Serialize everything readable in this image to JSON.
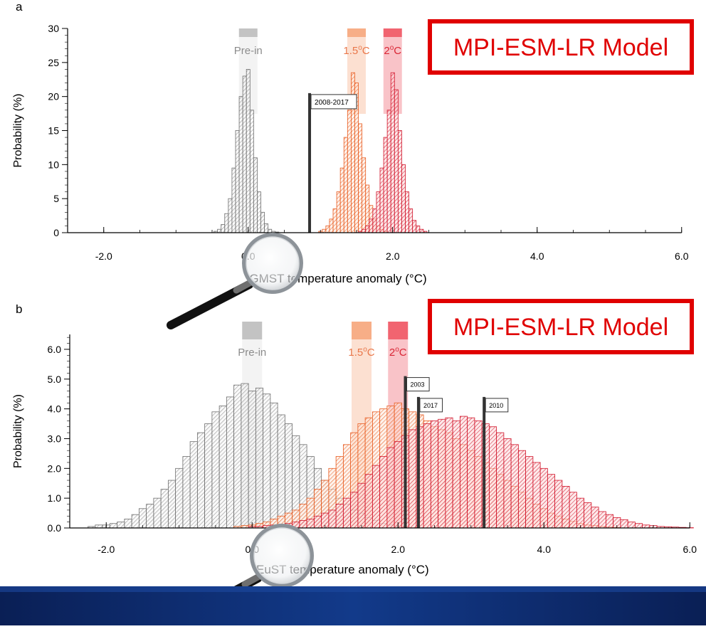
{
  "slide": {
    "model_label": "MPI-ESM-LR Model",
    "footer_color": "#0b2a6b",
    "accent_red": "#e00000"
  },
  "chart_data": [
    {
      "panel_letter": "a",
      "type": "bar",
      "xlabel": "GMST temperature anomaly (°C)",
      "ylabel": "Probability (%)",
      "xlim": [
        -2.5,
        6.0
      ],
      "ylim": [
        0,
        30
      ],
      "xticks": [
        -2.0,
        0.0,
        2.0,
        4.0,
        6.0
      ],
      "xtick_labels": [
        "-2.0",
        "0.0",
        "2.0",
        "4.0",
        "6.0"
      ],
      "yticks": [
        0,
        5,
        10,
        15,
        20,
        25,
        30
      ],
      "ytick_labels": [
        "0",
        "5",
        "10",
        "15",
        "20",
        "25",
        "30"
      ],
      "bin_width": 0.05,
      "legend": [
        {
          "label": "Pre-in",
          "base": "",
          "sup": "",
          "center": 0.0,
          "color": "#bdbdbd",
          "text_color": "#8c8c8c"
        },
        {
          "label": "1.5°C",
          "base": "1.5",
          "sup": "o",
          "after": "C",
          "center": 1.5,
          "color": "#f6a57a",
          "text_color": "#e9774a"
        },
        {
          "label": "2°C",
          "base": "2",
          "sup": "o",
          "after": "C",
          "center": 2.0,
          "color": "#ef5360",
          "text_color": "#d92635"
        }
      ],
      "series": [
        {
          "name": "Pre-in",
          "stroke": "#6e6e6e",
          "fill": "#f3f3f3",
          "x": [
            -0.45,
            -0.4,
            -0.35,
            -0.3,
            -0.25,
            -0.2,
            -0.15,
            -0.1,
            -0.05,
            0.0,
            0.05,
            0.1,
            0.15,
            0.2,
            0.25,
            0.3,
            0.35,
            0.4
          ],
          "values": [
            0.2,
            0.5,
            1.2,
            2.8,
            5.0,
            9.5,
            15.0,
            20.0,
            23.0,
            24.0,
            18.0,
            11.0,
            6.0,
            3.0,
            1.3,
            0.5,
            0.2,
            0.1
          ]
        },
        {
          "name": "1.5°C",
          "stroke": "#e85a1e",
          "fill": "#fde6d8",
          "x": [
            1.0,
            1.05,
            1.1,
            1.15,
            1.2,
            1.25,
            1.3,
            1.35,
            1.4,
            1.45,
            1.5,
            1.55,
            1.6,
            1.65,
            1.7,
            1.75,
            1.8,
            1.85,
            1.9
          ],
          "values": [
            0.2,
            0.5,
            1.0,
            2.0,
            3.5,
            6.0,
            9.5,
            14.0,
            18.0,
            23.5,
            22.0,
            16.0,
            11.0,
            7.0,
            4.0,
            2.0,
            1.0,
            0.5,
            0.2
          ]
        },
        {
          "name": "2°C",
          "stroke": "#d1142a",
          "fill": "#fbd3d6",
          "x": [
            1.55,
            1.6,
            1.65,
            1.7,
            1.75,
            1.8,
            1.85,
            1.9,
            1.95,
            2.0,
            2.05,
            2.1,
            2.15,
            2.2,
            2.25,
            2.3,
            2.35,
            2.4,
            2.45
          ],
          "values": [
            0.2,
            0.5,
            1.0,
            2.0,
            3.5,
            6.0,
            9.5,
            14.0,
            18.0,
            23.5,
            21.0,
            15.0,
            10.0,
            6.0,
            3.5,
            1.8,
            1.0,
            0.5,
            0.2
          ]
        }
      ],
      "markers": [
        {
          "label": "2008-2017",
          "x": 0.85,
          "top": 20.5
        }
      ]
    },
    {
      "panel_letter": "b",
      "type": "bar",
      "xlabel": "EuST temperature anomaly (°C)",
      "ylabel": "Probability (%)",
      "xlim": [
        -2.5,
        6.0
      ],
      "ylim": [
        0,
        6.5
      ],
      "xticks": [
        -2.0,
        0.0,
        2.0,
        4.0,
        6.0
      ],
      "xtick_labels": [
        "-2.0",
        "0.0",
        "2.0",
        "4.0",
        "6.0"
      ],
      "yticks": [
        0,
        1,
        2,
        3,
        4,
        5,
        6
      ],
      "ytick_labels": [
        "0.0",
        "1.0",
        "2.0",
        "3.0",
        "4.0",
        "5.0",
        "6.0"
      ],
      "bin_width": 0.1,
      "legend": [
        {
          "label": "Pre-in",
          "base": "",
          "sup": "",
          "center": 0.0,
          "color": "#bdbdbd",
          "text_color": "#8c8c8c"
        },
        {
          "label": "1.5°C",
          "base": "1.5",
          "sup": "o",
          "after": "C",
          "center": 1.5,
          "color": "#f6a57a",
          "text_color": "#e9774a"
        },
        {
          "label": "2°C",
          "base": "2",
          "sup": "o",
          "after": "C",
          "center": 2.0,
          "color": "#ef5360",
          "text_color": "#d92635"
        }
      ],
      "series": [
        {
          "name": "Pre-in",
          "stroke": "#6e6e6e",
          "fill": "#f3f3f3",
          "x": [
            -2.2,
            -2.1,
            -2.0,
            -1.9,
            -1.8,
            -1.7,
            -1.6,
            -1.5,
            -1.4,
            -1.3,
            -1.2,
            -1.1,
            -1.0,
            -0.9,
            -0.8,
            -0.7,
            -0.6,
            -0.5,
            -0.4,
            -0.3,
            -0.2,
            -0.1,
            0.0,
            0.1,
            0.2,
            0.3,
            0.4,
            0.5,
            0.6,
            0.7,
            0.8,
            0.9,
            1.0,
            1.1,
            1.2,
            1.3,
            1.4,
            1.5,
            1.6,
            1.7,
            1.8,
            1.9,
            2.0
          ],
          "values": [
            0.05,
            0.1,
            0.1,
            0.15,
            0.2,
            0.3,
            0.45,
            0.65,
            0.8,
            1.0,
            1.3,
            1.6,
            2.0,
            2.4,
            2.9,
            3.2,
            3.5,
            3.9,
            4.1,
            4.4,
            4.8,
            4.85,
            4.6,
            4.7,
            4.5,
            4.2,
            3.8,
            3.5,
            3.1,
            2.8,
            2.4,
            2.0,
            1.6,
            1.3,
            1.0,
            0.8,
            0.6,
            0.5,
            0.35,
            0.25,
            0.15,
            0.1,
            0.05
          ]
        },
        {
          "name": "1.5°C",
          "stroke": "#e85a1e",
          "fill": "#fde6d8",
          "x": [
            -0.2,
            -0.1,
            0.0,
            0.1,
            0.2,
            0.3,
            0.4,
            0.5,
            0.6,
            0.7,
            0.8,
            0.9,
            1.0,
            1.1,
            1.2,
            1.3,
            1.4,
            1.5,
            1.6,
            1.7,
            1.8,
            1.9,
            2.0,
            2.1,
            2.2,
            2.3,
            2.4,
            2.5,
            2.6,
            2.7,
            2.8,
            2.9,
            3.0,
            3.1,
            3.2,
            3.3,
            3.4,
            3.5,
            3.6,
            3.7,
            3.8,
            3.9,
            4.0,
            4.1,
            4.2,
            4.3,
            4.4,
            4.5,
            4.6,
            4.7,
            4.8,
            4.9,
            5.0
          ],
          "values": [
            0.05,
            0.08,
            0.1,
            0.15,
            0.2,
            0.3,
            0.4,
            0.5,
            0.6,
            0.8,
            1.0,
            1.3,
            1.6,
            2.0,
            2.4,
            2.8,
            3.2,
            3.5,
            3.7,
            3.9,
            4.0,
            4.1,
            4.2,
            4.0,
            3.9,
            3.8,
            3.6,
            3.4,
            3.3,
            3.2,
            3.0,
            2.8,
            2.6,
            2.4,
            2.2,
            2.0,
            1.8,
            1.6,
            1.4,
            1.2,
            1.0,
            0.8,
            0.65,
            0.5,
            0.4,
            0.3,
            0.22,
            0.15,
            0.1,
            0.08,
            0.05,
            0.03,
            0.02
          ]
        },
        {
          "name": "2°C",
          "stroke": "#d1142a",
          "fill": "#fbd3d6",
          "x": [
            0.0,
            0.1,
            0.2,
            0.3,
            0.4,
            0.5,
            0.6,
            0.7,
            0.8,
            0.9,
            1.0,
            1.1,
            1.2,
            1.3,
            1.4,
            1.5,
            1.6,
            1.7,
            1.8,
            1.9,
            2.0,
            2.1,
            2.2,
            2.3,
            2.4,
            2.5,
            2.6,
            2.7,
            2.8,
            2.9,
            3.0,
            3.1,
            3.2,
            3.3,
            3.4,
            3.5,
            3.6,
            3.7,
            3.8,
            3.9,
            4.0,
            4.1,
            4.2,
            4.3,
            4.4,
            4.5,
            4.6,
            4.7,
            4.8,
            4.9,
            5.0,
            5.1,
            5.2,
            5.3,
            5.4,
            5.5,
            5.6,
            5.7,
            5.8,
            5.9,
            6.0
          ],
          "values": [
            0.05,
            0.05,
            0.08,
            0.1,
            0.12,
            0.15,
            0.2,
            0.25,
            0.3,
            0.4,
            0.5,
            0.6,
            0.8,
            1.0,
            1.2,
            1.5,
            1.8,
            2.1,
            2.4,
            2.7,
            2.9,
            3.1,
            3.3,
            3.4,
            3.5,
            3.6,
            3.65,
            3.7,
            3.6,
            3.75,
            3.7,
            3.6,
            3.5,
            3.4,
            3.2,
            3.0,
            2.8,
            2.6,
            2.4,
            2.2,
            2.0,
            1.8,
            1.6,
            1.4,
            1.2,
            1.0,
            0.85,
            0.7,
            0.55,
            0.45,
            0.35,
            0.28,
            0.2,
            0.15,
            0.1,
            0.08,
            0.05,
            0.04,
            0.03,
            0.02,
            0.01
          ]
        }
      ],
      "markers": [
        {
          "label": "2003",
          "x": 2.1,
          "top": 5.1
        },
        {
          "label": "2017",
          "x": 2.28,
          "top": 4.4
        },
        {
          "label": "2010",
          "x": 3.18,
          "top": 4.4
        }
      ]
    }
  ]
}
